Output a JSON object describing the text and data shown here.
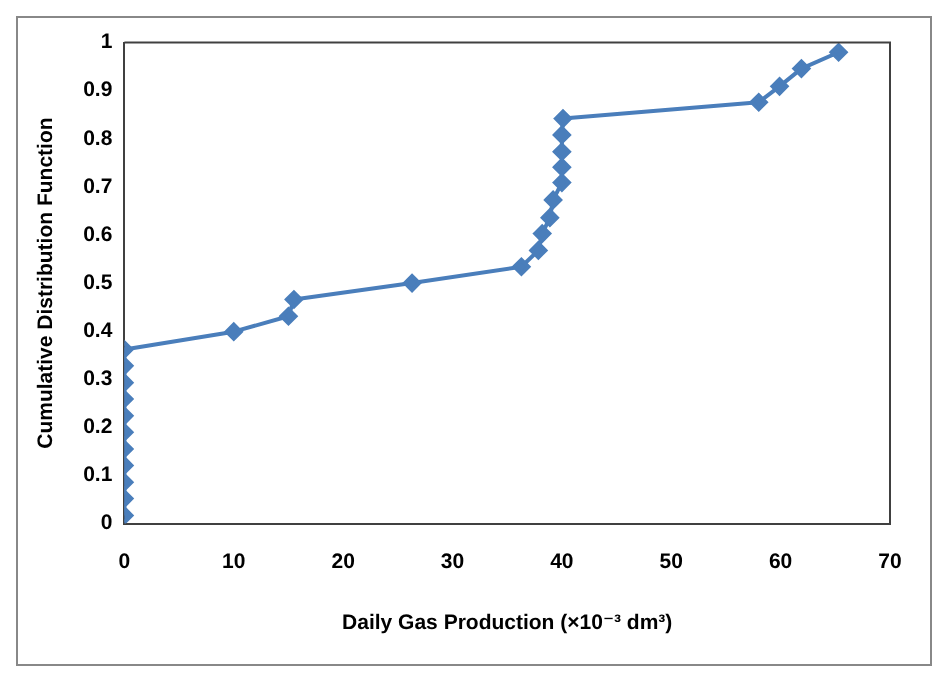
{
  "chart_data": {
    "type": "line",
    "xlabel": "Daily Gas Production (×10⁻³ dm³)",
    "ylabel": "Cumulative Distribution Function",
    "x": [
      0,
      0,
      0,
      0,
      0,
      0,
      0,
      0,
      0,
      0,
      0,
      10,
      15,
      15.5,
      26.3,
      36.3,
      37.85,
      38.2,
      38.9,
      39.2,
      40,
      40,
      40,
      40,
      40.1,
      58,
      59.9,
      61.9,
      65.3
    ],
    "series": [
      {
        "color": "#4a7ebb",
        "values": [
          0.017,
          0.052,
          0.086,
          0.121,
          0.155,
          0.19,
          0.224,
          0.259,
          0.293,
          0.328,
          0.362,
          0.399,
          0.431,
          0.466,
          0.5,
          0.534,
          0.568,
          0.603,
          0.636,
          0.673,
          0.709,
          0.741,
          0.773,
          0.808,
          0.842,
          0.876,
          0.909,
          0.946,
          0.98
        ]
      }
    ],
    "xlim": [
      0,
      70
    ],
    "xticks": [
      0,
      10,
      20,
      30,
      40,
      50,
      60,
      70
    ],
    "ylim": [
      0,
      1
    ],
    "yticks": [
      0,
      0.1,
      0.2,
      0.3,
      0.4,
      0.5,
      0.6,
      0.7,
      0.8,
      0.9,
      1
    ],
    "grid": false,
    "legend": false,
    "marker": "diamond",
    "line_style": "solid"
  }
}
